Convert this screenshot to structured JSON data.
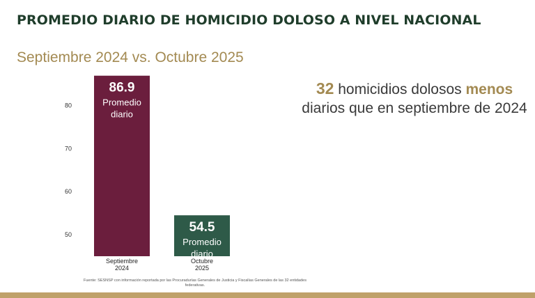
{
  "header": {
    "title": "PROMEDIO DIARIO DE HOMICIDIO DOLOSO A NIVEL NACIONAL",
    "subtitle": "Septiembre 2024 vs. Octubre 2025"
  },
  "callout": {
    "number": "32",
    "text_part1": " homicidios dolosos ",
    "emphasis": "menos",
    "text_part2": " diarios que en septiembre de 2024"
  },
  "source_note": "Fuente: SESNSP con información reportada por las Procuradurías Generales de Justicia y Fiscalías Generales de las 32 entidades federativas.",
  "colors": {
    "title": "#1f3d2b",
    "accent_gold": "#a38a52",
    "bar_sep_2024": "#6b1e3d",
    "bar_oct_2025": "#2e5a48"
  },
  "chart_data": {
    "type": "bar",
    "categories": [
      "Septiembre 2024",
      "Octubre 2025"
    ],
    "category_lines": [
      [
        "Septiembre",
        "2024"
      ],
      [
        "Octubre",
        "2025"
      ]
    ],
    "values": [
      86.9,
      54.5
    ],
    "value_labels": [
      "86.9",
      "54.5"
    ],
    "bar_caption": [
      "Promedio",
      "diario"
    ],
    "bar_colors": [
      "#6b1e3d",
      "#2e5a48"
    ],
    "yticks": [
      50,
      60,
      70,
      80
    ],
    "ylim": [
      45,
      87.5
    ],
    "grid": false
  }
}
